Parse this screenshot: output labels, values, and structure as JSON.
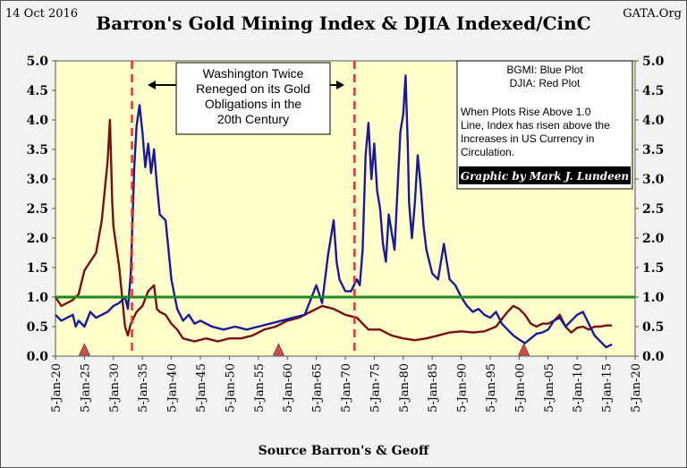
{
  "header": {
    "date": "14 Oct 2016",
    "title": "Barron's Gold Mining Index & DJIA Indexed/CinC",
    "site": "GATA.Org"
  },
  "annotation": {
    "lines": [
      "Washington Twice",
      "Reneged on its Gold",
      "Obligations in the",
      "20th Century"
    ]
  },
  "legend": {
    "lines": [
      "BGMI: Blue Plot",
      "DJIA: Red Plot",
      "When Plots Rise Above 1.0",
      "Line, Index has risen above the",
      "Increases in US Currency in",
      "Circulation."
    ],
    "credit": "Graphic by Mark J. Lundeen"
  },
  "footer": {
    "source": "Source Barron's & Geoff"
  },
  "colors": {
    "bgmi": "#1a1a99",
    "djia": "#7a0f0f",
    "plot_bg": "#ffffcc",
    "one_line": "#1e8a1e",
    "reneged_line": "#ff2a2a",
    "marker": "#d84a4a"
  },
  "chart_data": {
    "type": "line",
    "title": "Barron's Gold Mining Index & DJIA Indexed/CinC",
    "xlim": [
      1920,
      2020
    ],
    "ylim": [
      0,
      5
    ],
    "y_ticks": [
      "0.0",
      "0.5",
      "1.0",
      "1.5",
      "2.0",
      "2.5",
      "3.0",
      "3.5",
      "4.0",
      "4.5",
      "5.0"
    ],
    "x_ticks": [
      "5-Jan-20",
      "5-Jan-25",
      "5-Jan-30",
      "5-Jan-35",
      "5-Jan-40",
      "5-Jan-45",
      "5-Jan-50",
      "5-Jan-55",
      "5-Jan-60",
      "5-Jan-65",
      "5-Jan-70",
      "5-Jan-75",
      "5-Jan-80",
      "5-Jan-85",
      "5-Jan-90",
      "5-Jan-95",
      "5-Jan-00",
      "5-Jan-05",
      "5-Jan-10",
      "5-Jan-15",
      "5-Jan-20"
    ],
    "reference_line": 1.0,
    "reneged_years": [
      1933.2,
      1971.6
    ],
    "marker_years": [
      1925,
      1958.5,
      2000.8
    ],
    "series": [
      {
        "name": "BGMI",
        "points": [
          [
            1920,
            0.7
          ],
          [
            1921,
            0.6
          ],
          [
            1922,
            0.65
          ],
          [
            1923,
            0.7
          ],
          [
            1923.5,
            0.5
          ],
          [
            1924,
            0.6
          ],
          [
            1925,
            0.5
          ],
          [
            1926,
            0.75
          ],
          [
            1927,
            0.65
          ],
          [
            1928,
            0.7
          ],
          [
            1929,
            0.75
          ],
          [
            1930,
            0.85
          ],
          [
            1931,
            0.9
          ],
          [
            1932,
            1.0
          ],
          [
            1932.5,
            0.8
          ],
          [
            1933,
            1.4
          ],
          [
            1933.6,
            3.2
          ],
          [
            1934,
            3.9
          ],
          [
            1934.5,
            4.25
          ],
          [
            1935,
            3.8
          ],
          [
            1935.5,
            3.2
          ],
          [
            1936,
            3.6
          ],
          [
            1936.5,
            3.1
          ],
          [
            1937,
            3.5
          ],
          [
            1937.5,
            2.9
          ],
          [
            1938,
            2.4
          ],
          [
            1939,
            2.3
          ],
          [
            1939.5,
            1.8
          ],
          [
            1940,
            1.3
          ],
          [
            1941,
            0.8
          ],
          [
            1942,
            0.6
          ],
          [
            1943,
            0.7
          ],
          [
            1944,
            0.55
          ],
          [
            1945,
            0.6
          ],
          [
            1947,
            0.5
          ],
          [
            1949,
            0.45
          ],
          [
            1951,
            0.5
          ],
          [
            1953,
            0.45
          ],
          [
            1955,
            0.5
          ],
          [
            1957,
            0.55
          ],
          [
            1959,
            0.6
          ],
          [
            1961,
            0.65
          ],
          [
            1963,
            0.7
          ],
          [
            1964,
            0.95
          ],
          [
            1965,
            1.2
          ],
          [
            1966,
            0.9
          ],
          [
            1967,
            1.7
          ],
          [
            1967.5,
            2.0
          ],
          [
            1968,
            2.3
          ],
          [
            1968.5,
            1.6
          ],
          [
            1969,
            1.3
          ],
          [
            1970,
            1.1
          ],
          [
            1971,
            1.1
          ],
          [
            1972,
            1.3
          ],
          [
            1972.5,
            1.2
          ],
          [
            1973,
            1.8
          ],
          [
            1973.5,
            3.4
          ],
          [
            1974,
            3.95
          ],
          [
            1974.5,
            3.0
          ],
          [
            1975,
            3.6
          ],
          [
            1975.5,
            2.8
          ],
          [
            1976,
            2.5
          ],
          [
            1976.5,
            1.9
          ],
          [
            1977,
            1.6
          ],
          [
            1977.5,
            2.4
          ],
          [
            1978,
            2.1
          ],
          [
            1978.5,
            1.8
          ],
          [
            1979,
            2.8
          ],
          [
            1979.5,
            3.8
          ],
          [
            1980,
            4.1
          ],
          [
            1980.4,
            4.75
          ],
          [
            1980.8,
            3.5
          ],
          [
            1981,
            2.6
          ],
          [
            1981.5,
            2.0
          ],
          [
            1982,
            2.6
          ],
          [
            1982.5,
            3.4
          ],
          [
            1983,
            2.9
          ],
          [
            1983.5,
            2.2
          ],
          [
            1984,
            1.8
          ],
          [
            1985,
            1.4
          ],
          [
            1986,
            1.3
          ],
          [
            1987,
            1.9
          ],
          [
            1987.5,
            1.6
          ],
          [
            1988,
            1.3
          ],
          [
            1989,
            1.2
          ],
          [
            1990,
            1.0
          ],
          [
            1991,
            0.85
          ],
          [
            1992,
            0.75
          ],
          [
            1993,
            0.8
          ],
          [
            1994,
            0.7
          ],
          [
            1995,
            0.65
          ],
          [
            1996,
            0.75
          ],
          [
            1997,
            0.55
          ],
          [
            1998,
            0.45
          ],
          [
            1999,
            0.35
          ],
          [
            2000,
            0.28
          ],
          [
            2001,
            0.22
          ],
          [
            2002,
            0.3
          ],
          [
            2003,
            0.38
          ],
          [
            2004,
            0.4
          ],
          [
            2005,
            0.45
          ],
          [
            2006,
            0.6
          ],
          [
            2007,
            0.65
          ],
          [
            2008,
            0.5
          ],
          [
            2009,
            0.6
          ],
          [
            2010,
            0.7
          ],
          [
            2011,
            0.75
          ],
          [
            2012,
            0.55
          ],
          [
            2013,
            0.35
          ],
          [
            2014,
            0.25
          ],
          [
            2015,
            0.15
          ],
          [
            2016,
            0.2
          ]
        ]
      },
      {
        "name": "DJIA",
        "points": [
          [
            1920,
            1.0
          ],
          [
            1921,
            0.85
          ],
          [
            1922,
            0.9
          ],
          [
            1923,
            0.95
          ],
          [
            1924,
            1.05
          ],
          [
            1925,
            1.45
          ],
          [
            1926,
            1.6
          ],
          [
            1927,
            1.75
          ],
          [
            1928,
            2.3
          ],
          [
            1929,
            3.3
          ],
          [
            1929.4,
            4.0
          ],
          [
            1929.8,
            2.6
          ],
          [
            1930,
            2.2
          ],
          [
            1931,
            1.5
          ],
          [
            1932,
            0.5
          ],
          [
            1932.5,
            0.35
          ],
          [
            1933,
            0.55
          ],
          [
            1934,
            0.75
          ],
          [
            1935,
            0.85
          ],
          [
            1936,
            1.1
          ],
          [
            1937,
            1.2
          ],
          [
            1937.5,
            0.8
          ],
          [
            1938,
            0.75
          ],
          [
            1939,
            0.7
          ],
          [
            1940,
            0.55
          ],
          [
            1941,
            0.45
          ],
          [
            1942,
            0.3
          ],
          [
            1944,
            0.25
          ],
          [
            1946,
            0.3
          ],
          [
            1948,
            0.25
          ],
          [
            1950,
            0.3
          ],
          [
            1952,
            0.3
          ],
          [
            1954,
            0.35
          ],
          [
            1956,
            0.45
          ],
          [
            1958,
            0.5
          ],
          [
            1960,
            0.6
          ],
          [
            1962,
            0.65
          ],
          [
            1964,
            0.75
          ],
          [
            1966,
            0.85
          ],
          [
            1968,
            0.8
          ],
          [
            1970,
            0.7
          ],
          [
            1972,
            0.65
          ],
          [
            1974,
            0.45
          ],
          [
            1976,
            0.45
          ],
          [
            1978,
            0.35
          ],
          [
            1980,
            0.3
          ],
          [
            1982,
            0.27
          ],
          [
            1984,
            0.3
          ],
          [
            1986,
            0.35
          ],
          [
            1988,
            0.4
          ],
          [
            1990,
            0.42
          ],
          [
            1992,
            0.4
          ],
          [
            1994,
            0.42
          ],
          [
            1996,
            0.5
          ],
          [
            1998,
            0.75
          ],
          [
            1999,
            0.85
          ],
          [
            2000,
            0.8
          ],
          [
            2001,
            0.7
          ],
          [
            2002,
            0.55
          ],
          [
            2003,
            0.5
          ],
          [
            2004,
            0.55
          ],
          [
            2005,
            0.55
          ],
          [
            2006,
            0.6
          ],
          [
            2007,
            0.7
          ],
          [
            2008,
            0.5
          ],
          [
            2009,
            0.4
          ],
          [
            2010,
            0.48
          ],
          [
            2011,
            0.5
          ],
          [
            2012,
            0.45
          ],
          [
            2013,
            0.5
          ],
          [
            2014,
            0.5
          ],
          [
            2015,
            0.52
          ],
          [
            2016,
            0.52
          ]
        ]
      }
    ]
  }
}
